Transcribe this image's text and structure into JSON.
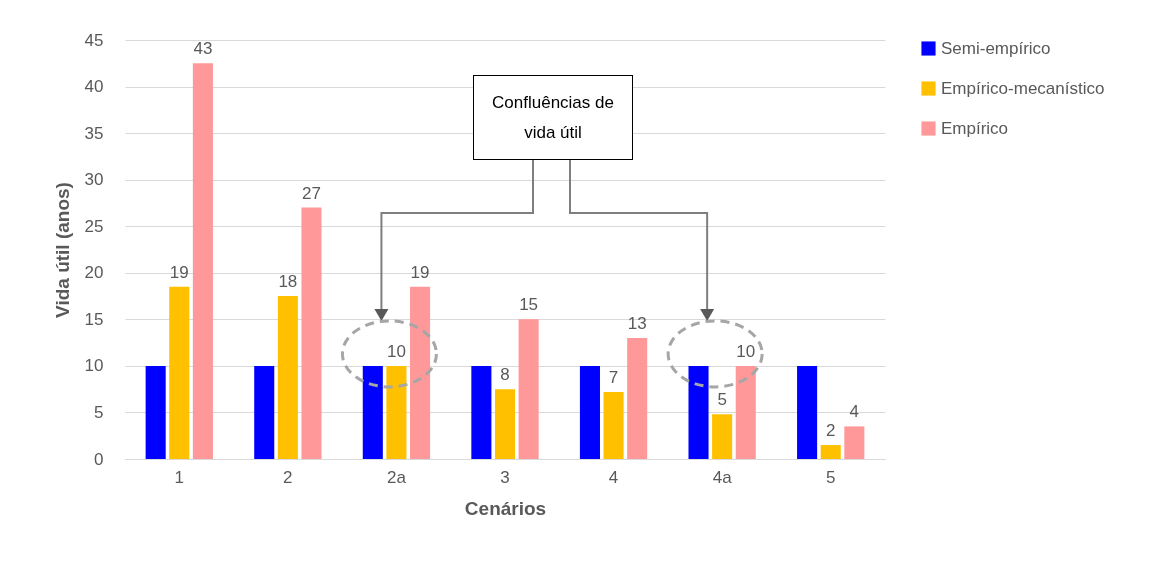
{
  "chart_data": {
    "type": "bar",
    "xlabel": "Cenários",
    "ylabel": "Vida útil (anos)",
    "categories": [
      "1",
      "2",
      "2a",
      "3",
      "4",
      "4a",
      "5"
    ],
    "series": [
      {
        "name": "Semi-empírico",
        "color": "#0000ff",
        "values": [
          10,
          10,
          10,
          10,
          10,
          10,
          10
        ]
      },
      {
        "name": "Empírico-mecanístico",
        "color": "#ffc000",
        "values": [
          18.5,
          17.5,
          10,
          7.5,
          7.2,
          4.8,
          1.5
        ],
        "value_labels": [
          "19",
          "18",
          "10",
          "8",
          "7",
          "5",
          "2"
        ]
      },
      {
        "name": "Empírico",
        "color": "#ff9999",
        "values": [
          42.5,
          27,
          18.5,
          15,
          13,
          10,
          3.5
        ],
        "value_labels": [
          "43",
          "27",
          "19",
          "15",
          "13",
          "10",
          "4"
        ]
      }
    ],
    "ylim": [
      0,
      45
    ],
    "yticks": [
      0,
      5,
      10,
      15,
      20,
      25,
      30,
      35,
      40,
      45
    ],
    "grid": "y",
    "legend": "right",
    "annotations": [
      "Confluências de vida útil"
    ]
  }
}
